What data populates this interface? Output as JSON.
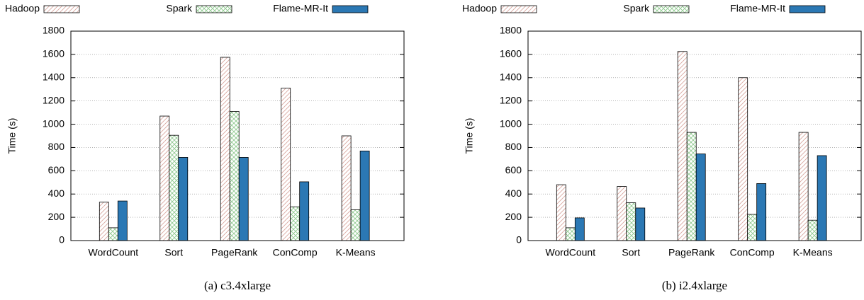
{
  "chart_data": [
    {
      "type": "bar",
      "caption": "(a) c3.4xlarge",
      "ylabel": "Time (s)",
      "categories": [
        "WordCount",
        "Sort",
        "PageRank",
        "ConComp",
        "K-Means"
      ],
      "series": [
        {
          "name": "Hadoop",
          "color": "#d9a8a0",
          "pattern": "hatch",
          "values": [
            330,
            1070,
            1575,
            1310,
            900
          ]
        },
        {
          "name": "Spark",
          "color": "#8fc98f",
          "pattern": "cross",
          "values": [
            110,
            905,
            1110,
            290,
            265
          ]
        },
        {
          "name": "Flame-MR-It",
          "color": "#2b78b4",
          "pattern": "solid",
          "values": [
            340,
            715,
            715,
            505,
            770
          ]
        }
      ],
      "ylim": [
        0,
        1800
      ],
      "yticks": [
        0,
        200,
        400,
        600,
        800,
        1000,
        1200,
        1400,
        1600,
        1800
      ],
      "grid": true
    },
    {
      "type": "bar",
      "caption": "(b) i2.4xlarge",
      "ylabel": "Time (s)",
      "categories": [
        "WordCount",
        "Sort",
        "PageRank",
        "ConComp",
        "K-Means"
      ],
      "series": [
        {
          "name": "Hadoop",
          "color": "#d9a8a0",
          "pattern": "hatch",
          "values": [
            480,
            465,
            1625,
            1400,
            930
          ]
        },
        {
          "name": "Spark",
          "color": "#8fc98f",
          "pattern": "cross",
          "values": [
            110,
            325,
            930,
            225,
            175
          ]
        },
        {
          "name": "Flame-MR-It",
          "color": "#2b78b4",
          "pattern": "solid",
          "values": [
            195,
            280,
            745,
            490,
            730
          ]
        }
      ],
      "ylim": [
        0,
        1800
      ],
      "yticks": [
        0,
        200,
        400,
        600,
        800,
        1000,
        1200,
        1400,
        1600,
        1800
      ],
      "grid": true
    }
  ]
}
